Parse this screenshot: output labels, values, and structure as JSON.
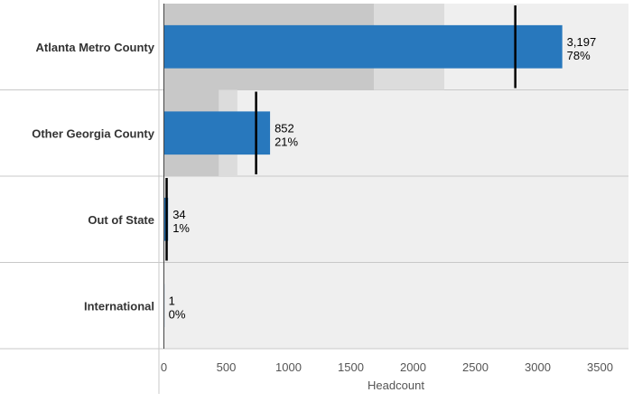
{
  "chart_data": {
    "type": "bar",
    "orientation": "horizontal",
    "subtype": "bullet",
    "categories": [
      "Atlanta Metro County",
      "Other Georgia County",
      "Out of State",
      "International"
    ],
    "series": [
      {
        "values": [
          3197,
          852,
          34,
          1
        ]
      }
    ],
    "value_labels": [
      "3,197",
      "852",
      "34",
      "1"
    ],
    "percent_labels": [
      "78%",
      "21%",
      "1%",
      "0%"
    ],
    "target_values": [
      2820,
      740,
      22,
      null
    ],
    "band_values": [
      [
        1685,
        2250
      ],
      [
        440,
        590
      ],
      [
        null,
        null
      ],
      [
        null,
        null
      ]
    ],
    "xlabel": "Headcount",
    "ylabel": "",
    "xlim": [
      0,
      3750
    ],
    "xticks": [
      0,
      500,
      1000,
      1500,
      2000,
      2500,
      3000,
      3500
    ],
    "xtick_labels": [
      "0",
      "500",
      "1000",
      "1500",
      "2000",
      "2500",
      "3000",
      "3500"
    ],
    "grid": false,
    "colors": {
      "bar": "#2878bd",
      "band_dark": "#c8c8c8",
      "band_light": "#dcdcdc",
      "plot_bg": "#efefef",
      "target": "#000000",
      "separator": "#c8c8c8"
    }
  }
}
